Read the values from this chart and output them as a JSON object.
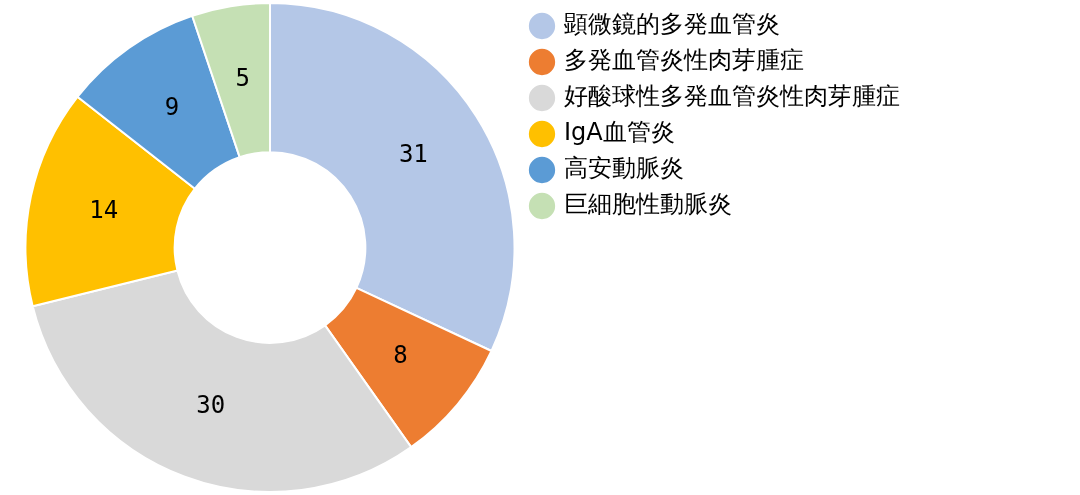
{
  "chart_data": {
    "type": "donut",
    "categories": [
      "顕微鏡的多発血管炎",
      "多発血管炎性肉芽腫症",
      "好酸球性多発血管炎性肉芽腫症",
      "IgA血管炎",
      "高安動脈炎",
      "巨細胞性動脈炎"
    ],
    "values": [
      31,
      8,
      30,
      14,
      9,
      5
    ],
    "colors": [
      "#b4c7e7",
      "#ed7d31",
      "#d9d9d9",
      "#ffc000",
      "#5b9bd5",
      "#c5e0b4"
    ],
    "legend": "right",
    "data_labels": true
  }
}
